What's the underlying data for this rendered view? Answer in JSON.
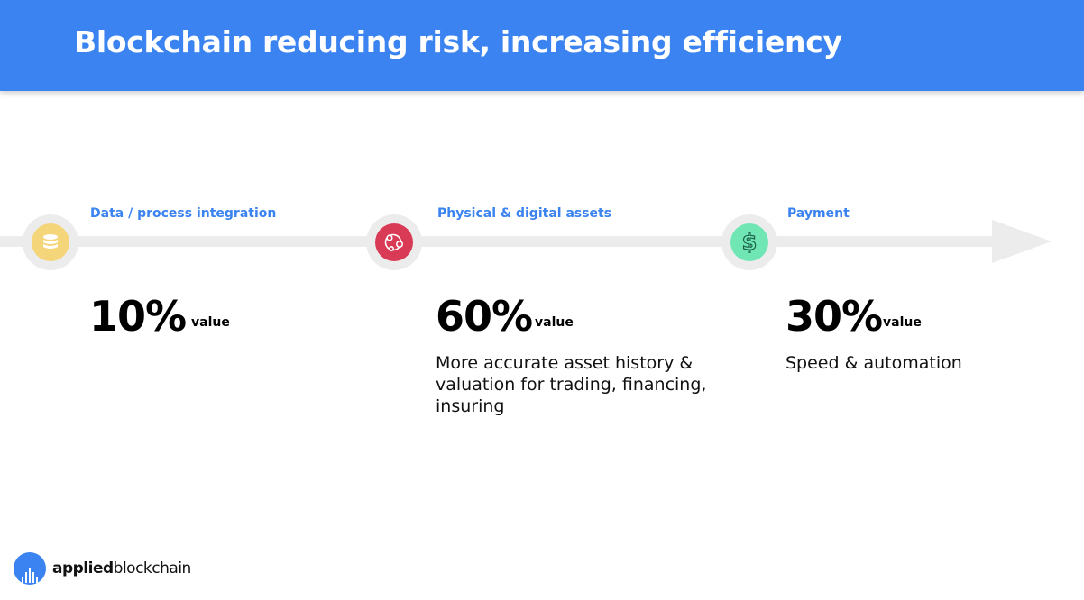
{
  "header": {
    "title": "Blockchain reducing risk, increasing efficiency",
    "background_color": "#3a83f0"
  },
  "stages": [
    {
      "label": "Data / process integration",
      "percent": "10%",
      "value_word": "value",
      "description": "",
      "icon": "database-icon",
      "icon_color": "#f5d57a"
    },
    {
      "label": "Physical & digital assets",
      "percent": "60%",
      "value_word": "value",
      "description": "More accurate asset history & valuation for trading, financing, insuring",
      "icon": "asset-network-icon",
      "icon_color": "#d93a55"
    },
    {
      "label": "Payment",
      "percent": "30%",
      "value_word": "value",
      "description": "Speed & automation",
      "icon": "dollar-icon",
      "icon_color": "#6fe6b4"
    }
  ],
  "logo": {
    "text_bold": "applied",
    "text_regular": "blockchain",
    "mark": "applied-blockchain-logo-icon"
  }
}
